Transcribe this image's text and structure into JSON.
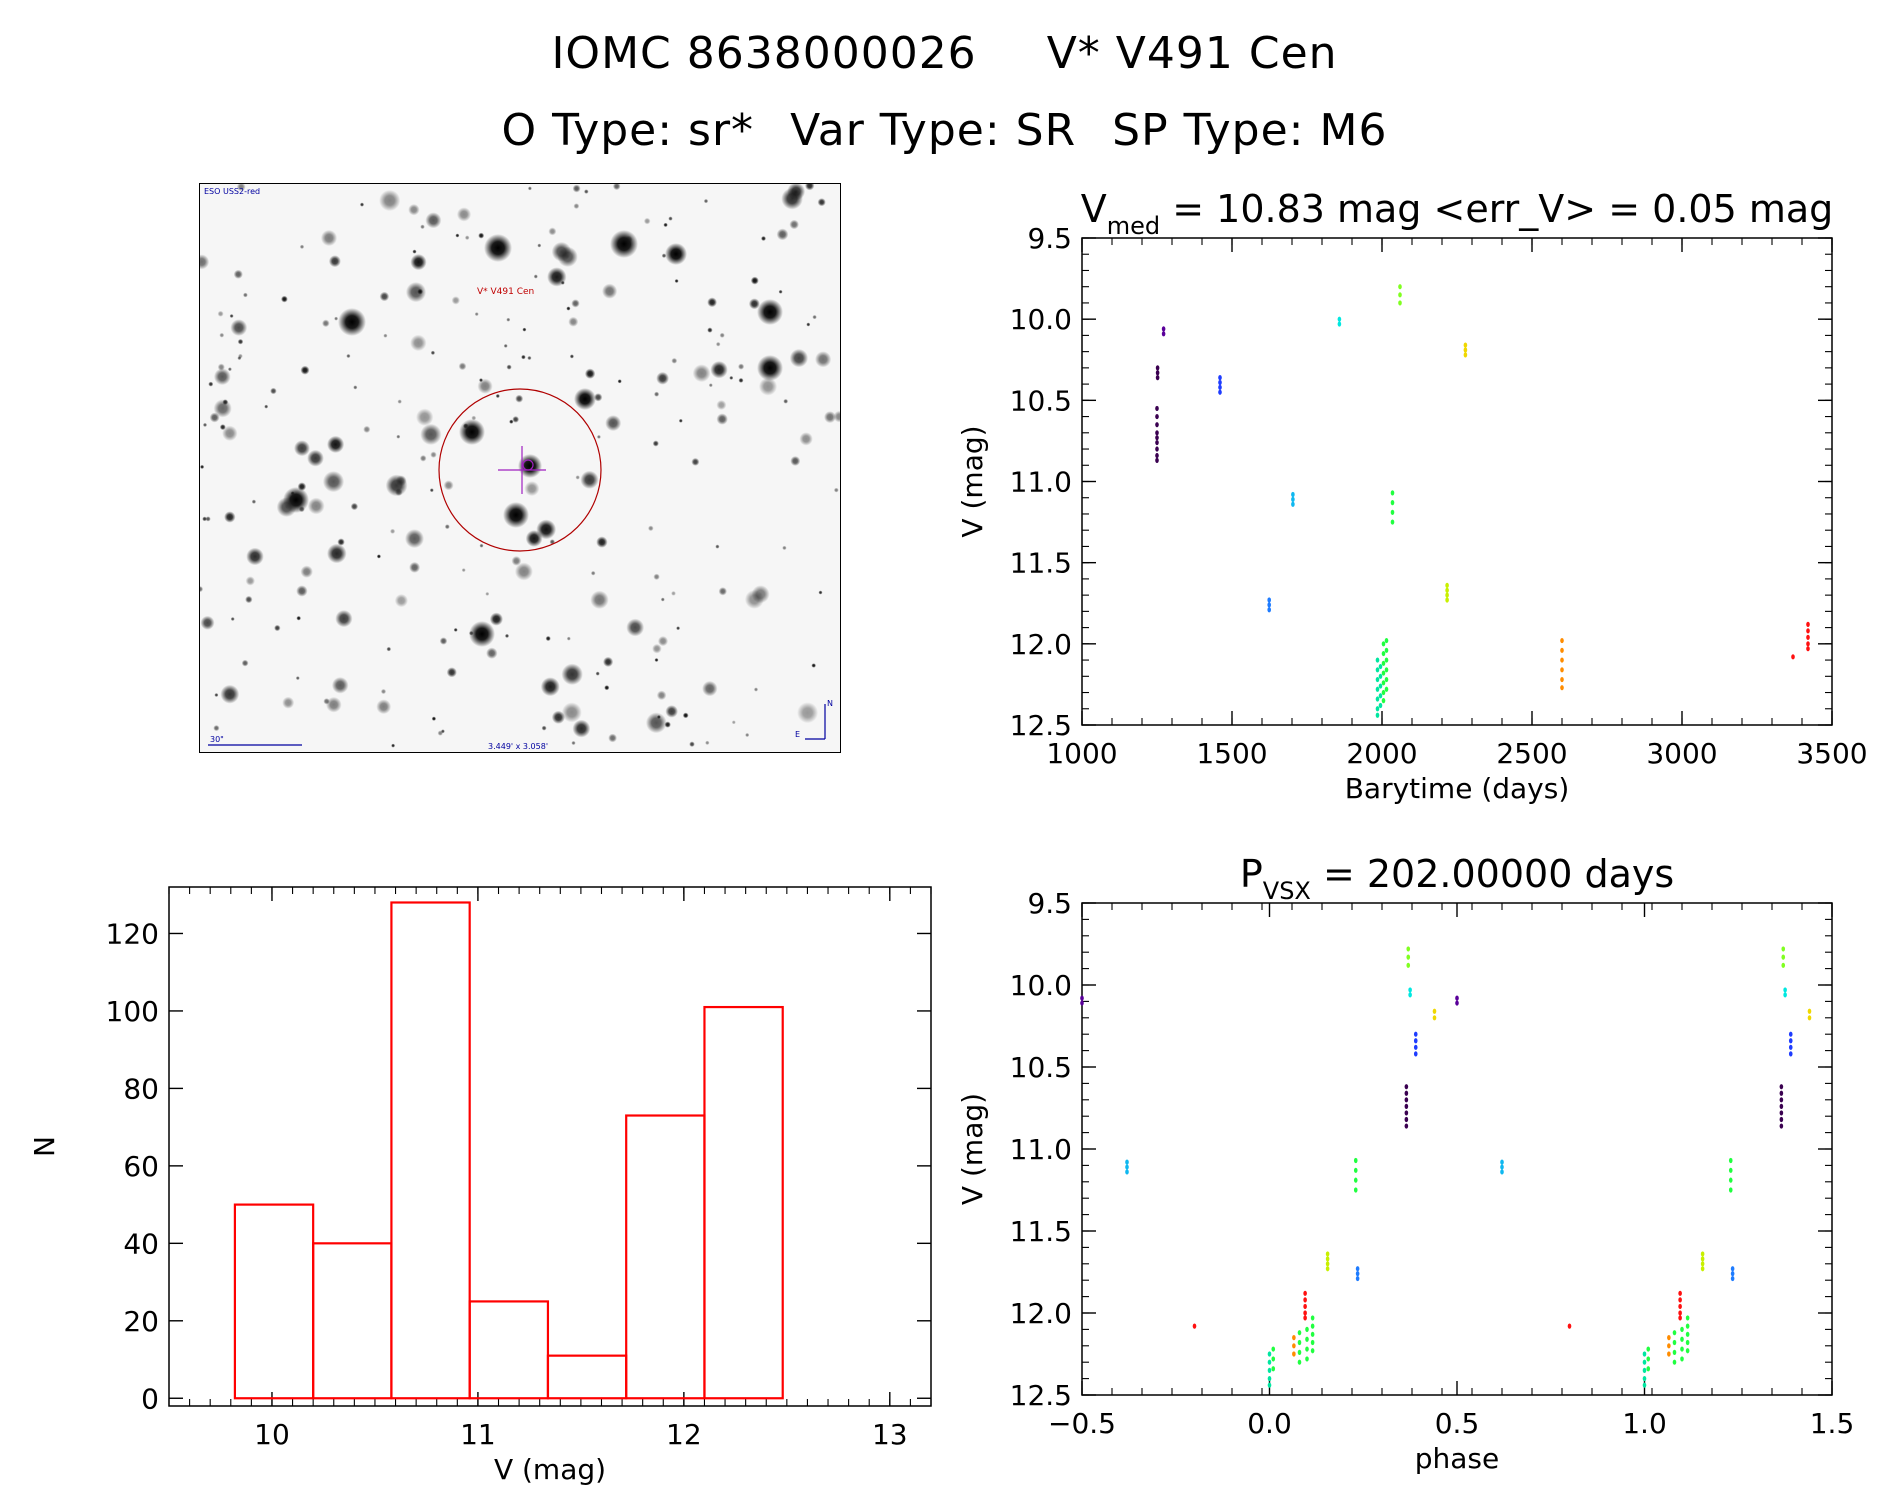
{
  "header": {
    "object_id": "IOMC 8638000026",
    "object_name": "V* V491 Cen",
    "otype": "O Type: sr*",
    "vartype": "Var Type: SR",
    "sptype": "SP Type: M6"
  },
  "skymap": {
    "survey_label": "ESO USS2-red",
    "target_label": "V* V491 Cen",
    "scale_label": "30\"",
    "fov_label": "3.449' x 3.058'",
    "north": "N",
    "east": "E"
  },
  "colors": {
    "hist": "#ff0000",
    "violet_dark": "#3a0050",
    "violet": "#5a009a",
    "blue": "#1e3cff",
    "blue2": "#1f7cff",
    "sky": "#10b8f0",
    "cyan": "#00e8e0",
    "teal": "#00e6a0",
    "green": "#20ff40",
    "lime": "#80ff20",
    "yellowgreen": "#c8f000",
    "yellow": "#f0d800",
    "orange": "#ff8c00",
    "red": "#ff1010"
  },
  "chart_data": [
    {
      "id": "lightcurve",
      "type": "scatter",
      "title_main": "V",
      "title_sub": "med",
      "title_rest": " = 10.83 mag <err_V> = 0.05 mag",
      "xlabel": "Barytime (days)",
      "ylabel": "V (mag)",
      "xlim": [
        1000,
        3500
      ],
      "ylim": [
        9.5,
        12.5
      ],
      "ylim_inverted": true,
      "xticks": [
        1000,
        1500,
        2000,
        2500,
        3000,
        3500
      ],
      "xtick_labels": [
        "1000",
        "1500",
        "2000",
        "2500",
        "3000",
        "3500"
      ],
      "yticks": [
        9.5,
        10.0,
        10.5,
        11.0,
        11.5,
        12.0,
        12.5
      ],
      "ytick_labels": [
        "9.5",
        "10.0",
        "10.5",
        "11.0",
        "11.5",
        "12.0",
        "12.5"
      ],
      "groups": [
        {
          "color": "violet_dark",
          "x": 1250,
          "y": [
            10.55,
            10.6,
            10.65,
            10.7,
            10.73,
            10.76,
            10.8,
            10.84,
            10.87
          ]
        },
        {
          "color": "violet_dark",
          "x": 1252,
          "y": [
            10.3,
            10.33,
            10.36
          ]
        },
        {
          "color": "violet",
          "x": 1272,
          "y": [
            10.06,
            10.09
          ]
        },
        {
          "color": "blue",
          "x": 1460,
          "y": [
            10.36,
            10.39,
            10.42,
            10.45
          ]
        },
        {
          "color": "blue2",
          "x": 1624,
          "y": [
            11.73,
            11.76,
            11.79
          ]
        },
        {
          "color": "sky",
          "x": 1703,
          "y": [
            11.08,
            11.11,
            11.14
          ]
        },
        {
          "color": "cyan",
          "x": 1858,
          "y": [
            10.0,
            10.03
          ]
        },
        {
          "color": "teal",
          "x": 1985,
          "y": [
            12.1,
            12.16,
            12.22,
            12.28,
            12.34,
            12.4,
            12.44
          ]
        },
        {
          "color": "teal",
          "x": 1995,
          "y": [
            12.14,
            12.2,
            12.26,
            12.32,
            12.38
          ]
        },
        {
          "color": "green",
          "x": 2005,
          "y": [
            12.0,
            12.06,
            12.12,
            12.18,
            12.24,
            12.3,
            12.35
          ]
        },
        {
          "color": "green",
          "x": 2015,
          "y": [
            11.98,
            12.04,
            12.1,
            12.16,
            12.22,
            12.28
          ]
        },
        {
          "color": "green",
          "x": 2035,
          "y": [
            11.07,
            11.13,
            11.19,
            11.25
          ]
        },
        {
          "color": "lime",
          "x": 2060,
          "y": [
            9.8,
            9.85,
            9.9
          ]
        },
        {
          "color": "yellowgreen",
          "x": 2217,
          "y": [
            11.64,
            11.67,
            11.7,
            11.73
          ]
        },
        {
          "color": "yellow",
          "x": 2278,
          "y": [
            10.16,
            10.19,
            10.22
          ]
        },
        {
          "color": "orange",
          "x": 2600,
          "y": [
            11.98,
            12.04,
            12.1,
            12.16,
            12.22,
            12.27
          ]
        },
        {
          "color": "red",
          "x": 3370,
          "y": [
            12.08
          ]
        },
        {
          "color": "red",
          "x": 3420,
          "y": [
            11.88,
            11.92,
            11.96,
            12.0,
            12.03
          ]
        }
      ]
    },
    {
      "id": "phased",
      "type": "scatter",
      "title_main": "P",
      "title_sub": "VSX",
      "title_rest": " = 202.00000 days",
      "xlabel": "phase",
      "ylabel": "V (mag)",
      "xlim": [
        -0.5,
        1.5
      ],
      "ylim": [
        9.5,
        12.5
      ],
      "ylim_inverted": true,
      "xticks": [
        -0.5,
        0.0,
        0.5,
        1.0,
        1.5
      ],
      "xtick_labels": [
        "−0.5",
        "0.0",
        "0.5",
        "1.0",
        "1.5"
      ],
      "yticks": [
        9.5,
        10.0,
        10.5,
        11.0,
        11.5,
        12.0,
        12.5
      ],
      "ytick_labels": [
        "9.5",
        "10.0",
        "10.5",
        "11.0",
        "11.5",
        "12.0",
        "12.5"
      ],
      "groups": [
        {
          "color": "violet",
          "x": -0.5,
          "y": [
            10.08,
            10.11
          ]
        },
        {
          "color": "violet",
          "x": 0.5,
          "y": [
            10.08,
            10.11
          ]
        },
        {
          "color": "sky",
          "x": -0.38,
          "y": [
            11.08,
            11.11,
            11.14
          ]
        },
        {
          "color": "sky",
          "x": 0.62,
          "y": [
            11.08,
            11.11,
            11.14
          ]
        },
        {
          "color": "red",
          "x": -0.2,
          "y": [
            12.08
          ]
        },
        {
          "color": "red",
          "x": 0.8,
          "y": [
            12.08
          ]
        },
        {
          "color": "teal",
          "x": 0.0,
          "y": [
            12.25,
            12.3,
            12.35,
            12.4,
            12.44
          ]
        },
        {
          "color": "teal",
          "x": 1.0,
          "y": [
            12.25,
            12.3,
            12.35,
            12.4,
            12.44
          ]
        },
        {
          "color": "green",
          "x": 0.01,
          "y": [
            12.22,
            12.28,
            12.34
          ]
        },
        {
          "color": "green",
          "x": 1.01,
          "y": [
            12.22,
            12.28,
            12.34
          ]
        },
        {
          "color": "orange",
          "x": 0.065,
          "y": [
            12.15,
            12.2,
            12.25
          ]
        },
        {
          "color": "orange",
          "x": 1.065,
          "y": [
            12.15,
            12.2,
            12.25
          ]
        },
        {
          "color": "green",
          "x": 0.08,
          "y": [
            12.12,
            12.18,
            12.24,
            12.3
          ]
        },
        {
          "color": "green",
          "x": 1.08,
          "y": [
            12.12,
            12.18,
            12.24,
            12.3
          ]
        },
        {
          "color": "green",
          "x": 0.1,
          "y": [
            12.1,
            12.16,
            12.22,
            12.28
          ]
        },
        {
          "color": "green",
          "x": 1.1,
          "y": [
            12.1,
            12.16,
            12.22,
            12.28
          ]
        },
        {
          "color": "red",
          "x": 0.095,
          "y": [
            11.88,
            11.92,
            11.96,
            12.0,
            12.03
          ]
        },
        {
          "color": "red",
          "x": 1.095,
          "y": [
            11.88,
            11.92,
            11.96,
            12.0,
            12.03
          ]
        },
        {
          "color": "green",
          "x": 0.115,
          "y": [
            12.03,
            12.08,
            12.13,
            12.18,
            12.23
          ]
        },
        {
          "color": "green",
          "x": 1.115,
          "y": [
            12.03,
            12.08,
            12.13,
            12.18,
            12.23
          ]
        },
        {
          "color": "yellowgreen",
          "x": 0.155,
          "y": [
            11.64,
            11.67,
            11.7,
            11.73
          ]
        },
        {
          "color": "yellowgreen",
          "x": 1.155,
          "y": [
            11.64,
            11.67,
            11.7,
            11.73
          ]
        },
        {
          "color": "green",
          "x": 0.23,
          "y": [
            11.07,
            11.13,
            11.19,
            11.25
          ]
        },
        {
          "color": "green",
          "x": 1.23,
          "y": [
            11.07,
            11.13,
            11.19,
            11.25
          ]
        },
        {
          "color": "blue2",
          "x": 0.235,
          "y": [
            11.73,
            11.76,
            11.79
          ]
        },
        {
          "color": "blue2",
          "x": 1.235,
          "y": [
            11.73,
            11.76,
            11.79
          ]
        },
        {
          "color": "violet_dark",
          "x": 0.365,
          "y": [
            10.62,
            10.66,
            10.7,
            10.74,
            10.78,
            10.82,
            10.86
          ]
        },
        {
          "color": "violet_dark",
          "x": 1.365,
          "y": [
            10.62,
            10.66,
            10.7,
            10.74,
            10.78,
            10.82,
            10.86
          ]
        },
        {
          "color": "lime",
          "x": 0.37,
          "y": [
            9.78,
            9.83,
            9.88
          ]
        },
        {
          "color": "lime",
          "x": 1.37,
          "y": [
            9.78,
            9.83,
            9.88
          ]
        },
        {
          "color": "cyan",
          "x": 0.375,
          "y": [
            10.03,
            10.06
          ]
        },
        {
          "color": "cyan",
          "x": 1.375,
          "y": [
            10.03,
            10.06
          ]
        },
        {
          "color": "blue",
          "x": 0.39,
          "y": [
            10.3,
            10.34,
            10.38,
            10.42
          ]
        },
        {
          "color": "blue",
          "x": 1.39,
          "y": [
            10.3,
            10.34,
            10.38,
            10.42
          ]
        },
        {
          "color": "yellow",
          "x": 0.44,
          "y": [
            10.16,
            10.2
          ]
        },
        {
          "color": "yellow",
          "x": 1.44,
          "y": [
            10.16,
            10.2
          ]
        }
      ]
    },
    {
      "id": "histogram",
      "type": "bar",
      "xlabel": "V (mag)",
      "ylabel": "N",
      "xlim": [
        9.5,
        13.2
      ],
      "ylim": [
        -2,
        132
      ],
      "xticks": [
        10,
        11,
        12,
        13
      ],
      "xtick_labels": [
        "10",
        "11",
        "12",
        "13"
      ],
      "yticks": [
        0,
        20,
        40,
        60,
        80,
        100,
        120
      ],
      "ytick_labels": [
        "0",
        "20",
        "40",
        "60",
        "80",
        "100",
        "120"
      ],
      "bin_edges": [
        9.82,
        10.2,
        10.58,
        10.96,
        11.34,
        11.72,
        12.1,
        12.48
      ],
      "values": [
        50,
        40,
        128,
        25,
        11,
        73,
        101
      ]
    }
  ]
}
